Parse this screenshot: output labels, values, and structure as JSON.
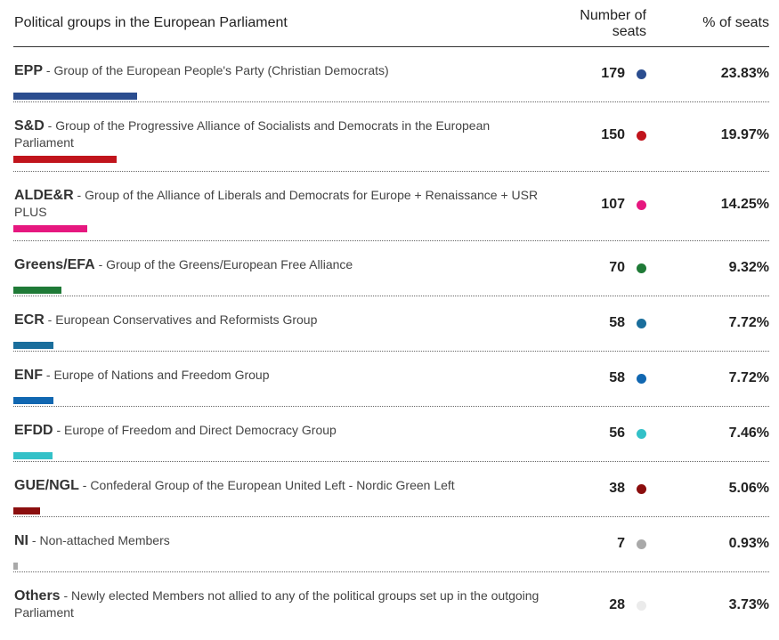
{
  "header": {
    "title": "Political groups in the European Parliament",
    "seats_label_line1": "Number of",
    "seats_label_line2": "seats",
    "pct_label": "% of seats"
  },
  "rows": [
    {
      "abbr": "EPP",
      "name": "Group of the European People's Party (Christian Democrats)",
      "seats": "179",
      "pct": "23.83%",
      "share": 23.83,
      "color": "#2b4d8f"
    },
    {
      "abbr": "S&D",
      "name": "Group of the Progressive Alliance of Socialists and Democrats in the European Parliament",
      "seats": "150",
      "pct": "19.97%",
      "share": 19.97,
      "color": "#c1141c"
    },
    {
      "abbr": "ALDE&R",
      "name": "Group of the Alliance of Liberals and Democrats for Europe + Renaissance + USR PLUS",
      "seats": "107",
      "pct": "14.25%",
      "share": 14.25,
      "color": "#e6177f"
    },
    {
      "abbr": "Greens/EFA",
      "name": "Group of the Greens/European Free Alliance",
      "seats": "70",
      "pct": "9.32%",
      "share": 9.32,
      "color": "#1f7a37"
    },
    {
      "abbr": "ECR",
      "name": "European Conservatives and Reformists Group",
      "seats": "58",
      "pct": "7.72%",
      "share": 7.72,
      "color": "#1a6e9c"
    },
    {
      "abbr": "ENF",
      "name": "Europe of Nations and Freedom Group",
      "seats": "58",
      "pct": "7.72%",
      "share": 7.72,
      "color": "#1167b1"
    },
    {
      "abbr": "EFDD",
      "name": "Europe of Freedom and Direct Democracy Group",
      "seats": "56",
      "pct": "7.46%",
      "share": 7.46,
      "color": "#33c1c8"
    },
    {
      "abbr": "GUE/NGL",
      "name": "Confederal Group of the European United Left - Nordic Green Left",
      "seats": "38",
      "pct": "5.06%",
      "share": 5.06,
      "color": "#8b0e0e"
    },
    {
      "abbr": "NI",
      "name": "Non-attached Members",
      "seats": "7",
      "pct": "0.93%",
      "share": 0.93,
      "color": "#a9a9a9"
    },
    {
      "abbr": "Others",
      "name": "Newly elected Members not allied to any of the political groups set up in the outgoing Parliament",
      "seats": "28",
      "pct": "3.73%",
      "share": 3.73,
      "color": "#ebebeb"
    }
  ]
}
